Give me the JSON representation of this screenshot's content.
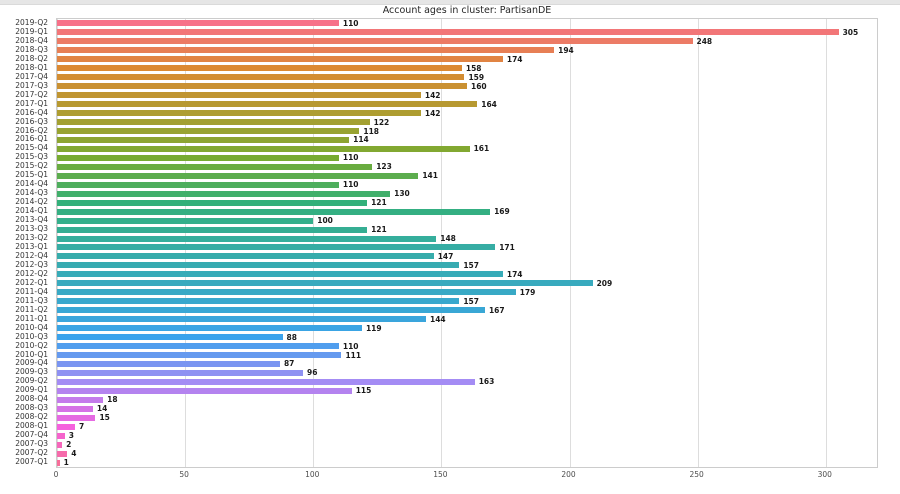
{
  "chart_data": {
    "type": "bar",
    "orientation": "horizontal",
    "title": "Account ages in cluster: PartisanDE",
    "xlabel": "",
    "ylabel": "",
    "xlim": [
      0,
      320
    ],
    "xticks": [
      0,
      50,
      100,
      150,
      200,
      250,
      300
    ],
    "grid": "vertical",
    "legend": "none",
    "value_labels": true,
    "categories": [
      "2019-Q2",
      "2019-Q1",
      "2018-Q4",
      "2018-Q3",
      "2018-Q2",
      "2018-Q1",
      "2017-Q4",
      "2017-Q3",
      "2017-Q2",
      "2017-Q1",
      "2016-Q4",
      "2016-Q3",
      "2016-Q2",
      "2016-Q1",
      "2015-Q4",
      "2015-Q3",
      "2015-Q2",
      "2015-Q1",
      "2014-Q4",
      "2014-Q3",
      "2014-Q2",
      "2014-Q1",
      "2013-Q4",
      "2013-Q3",
      "2013-Q2",
      "2013-Q1",
      "2012-Q4",
      "2012-Q3",
      "2012-Q2",
      "2012-Q1",
      "2011-Q4",
      "2011-Q3",
      "2011-Q2",
      "2011-Q1",
      "2010-Q4",
      "2010-Q3",
      "2010-Q2",
      "2010-Q1",
      "2009-Q4",
      "2009-Q3",
      "2009-Q2",
      "2009-Q1",
      "2008-Q4",
      "2008-Q3",
      "2008-Q2",
      "2008-Q1",
      "2007-Q4",
      "2007-Q3",
      "2007-Q2",
      "2007-Q1"
    ],
    "values": [
      110,
      305,
      248,
      194,
      174,
      158,
      159,
      160,
      142,
      164,
      142,
      122,
      118,
      114,
      161,
      110,
      123,
      141,
      110,
      130,
      121,
      169,
      100,
      121,
      148,
      171,
      147,
      157,
      174,
      209,
      179,
      157,
      167,
      144,
      119,
      88,
      110,
      111,
      87,
      96,
      163,
      115,
      18,
      14,
      15,
      7,
      3,
      2,
      4,
      1
    ],
    "colors": [
      "#f77189",
      "#f27678",
      "#ec7b66",
      "#e77f55",
      "#e18443",
      "#dc8932",
      "#d38d32",
      "#ca9132",
      "#c09531",
      "#b79931",
      "#ae9d31",
      "#a3a031",
      "#98a331",
      "#8da531",
      "#82a831",
      "#77ab31",
      "#69ac40",
      "#5cad4e",
      "#4eae5d",
      "#41af6b",
      "#33b07a",
      "#34af82",
      "#34af8b",
      "#35ae93",
      "#35ae9c",
      "#36ada4",
      "#36acab",
      "#37abb1",
      "#37abb8",
      "#38aabe",
      "#38a9c5",
      "#39a8cd",
      "#39a7d5",
      "#3aa5dc",
      "#3aa4e4",
      "#3ba3ec",
      "#509eee",
      "#659aef",
      "#7a95f1",
      "#8f91f2",
      "#a48cf4",
      "#b483ef",
      "#c47beb",
      "#d572e6",
      "#e56ae2",
      "#f561dd",
      "#f564cc",
      "#f667bb",
      "#f66bab",
      "#f76e9a"
    ],
    "grid_color": "#dddddd",
    "spine_color": "#cccccc",
    "title_color": "#262626",
    "tick_label_color": "#333333",
    "value_label_color": "#1a1a1a"
  }
}
